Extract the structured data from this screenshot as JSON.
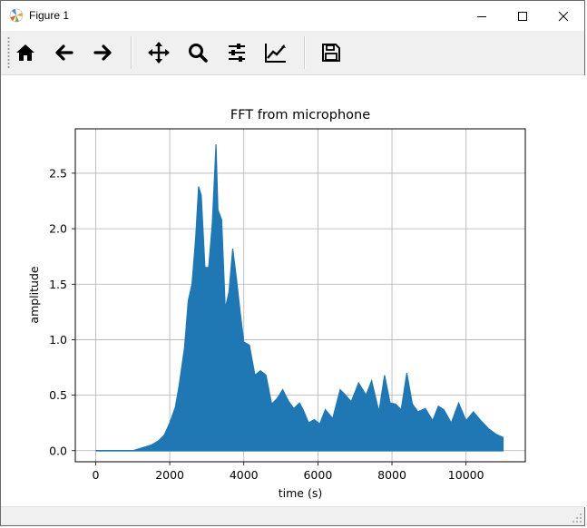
{
  "window": {
    "title": "Figure 1",
    "minimize_icon": "minimize-icon",
    "maximize_icon": "maximize-icon",
    "close_icon": "close-icon"
  },
  "toolbar": {
    "tools": [
      {
        "name": "home-icon"
      },
      {
        "name": "back-arrow-icon"
      },
      {
        "name": "forward-arrow-icon"
      },
      {
        "name": "pan-move-icon"
      },
      {
        "name": "zoom-magnifier-icon"
      },
      {
        "name": "configure-subplots-icon"
      },
      {
        "name": "edit-axis-icon"
      },
      {
        "name": "save-floppy-icon"
      }
    ]
  },
  "colors": {
    "line": "#1f77b4",
    "grid": "#b0b0b0",
    "toolbar_bg": "#f0f0f0"
  },
  "chart_data": {
    "type": "line",
    "title": "FFT from microphone",
    "xlabel": "time (s)",
    "ylabel": "amplitude",
    "xlim": [
      -550,
      11600
    ],
    "ylim": [
      -0.1,
      2.9
    ],
    "xticks": [
      0,
      2000,
      4000,
      6000,
      8000,
      10000
    ],
    "xtick_labels": [
      "0",
      "2000",
      "4000",
      "6000",
      "8000",
      "10000"
    ],
    "yticks": [
      0.0,
      0.5,
      1.0,
      1.5,
      2.0,
      2.5
    ],
    "ytick_labels": [
      "0.0",
      "0.5",
      "1.0",
      "1.5",
      "2.0",
      "2.5"
    ],
    "grid": true,
    "legend": "none",
    "series": [
      {
        "x": [
          0,
          1000,
          1300,
          1500,
          1700,
          1850,
          2000,
          2150,
          2250,
          2400,
          2500,
          2600,
          2700,
          2780,
          2850,
          2950,
          3050,
          3150,
          3250,
          3300,
          3400,
          3500,
          3600,
          3700,
          3800,
          3900,
          4000,
          4150,
          4300,
          4450,
          4600,
          4750,
          4900,
          5050,
          5200,
          5350,
          5500,
          5600,
          5750,
          5900,
          6050,
          6200,
          6400,
          6600,
          6750,
          6900,
          7100,
          7300,
          7450,
          7650,
          7800,
          7950,
          8100,
          8250,
          8400,
          8550,
          8700,
          8900,
          9100,
          9250,
          9400,
          9600,
          9800,
          10000,
          10200,
          10400,
          10600,
          10800,
          11000
        ],
        "values": [
          0.0,
          0.0,
          0.03,
          0.05,
          0.09,
          0.14,
          0.25,
          0.39,
          0.58,
          0.93,
          1.35,
          1.5,
          1.92,
          2.38,
          2.3,
          1.65,
          1.65,
          2.05,
          2.76,
          2.17,
          2.08,
          1.28,
          1.43,
          1.82,
          1.55,
          1.25,
          0.98,
          0.95,
          0.68,
          0.72,
          0.68,
          0.42,
          0.47,
          0.55,
          0.45,
          0.38,
          0.43,
          0.37,
          0.25,
          0.28,
          0.24,
          0.37,
          0.29,
          0.55,
          0.5,
          0.44,
          0.61,
          0.5,
          0.63,
          0.35,
          0.68,
          0.43,
          0.42,
          0.37,
          0.7,
          0.42,
          0.35,
          0.38,
          0.27,
          0.4,
          0.37,
          0.25,
          0.43,
          0.27,
          0.35,
          0.27,
          0.2,
          0.15,
          0.12
        ]
      }
    ]
  }
}
